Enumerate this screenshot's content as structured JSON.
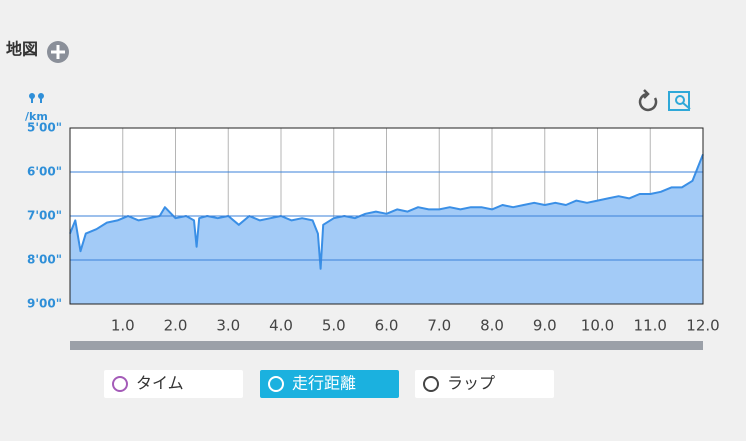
{
  "header": {
    "title": "地図"
  },
  "chart_data": {
    "type": "area",
    "y_label": "/km",
    "x": [
      0,
      0.1,
      0.2,
      0.3,
      0.5,
      0.7,
      0.9,
      1.1,
      1.3,
      1.5,
      1.7,
      1.8,
      2.0,
      2.2,
      2.35,
      2.4,
      2.45,
      2.6,
      2.8,
      3.0,
      3.2,
      3.4,
      3.6,
      3.8,
      4.0,
      4.2,
      4.4,
      4.6,
      4.7,
      4.75,
      4.8,
      5.0,
      5.2,
      5.4,
      5.6,
      5.8,
      6.0,
      6.2,
      6.4,
      6.6,
      6.8,
      7.0,
      7.2,
      7.4,
      7.6,
      7.8,
      8.0,
      8.2,
      8.4,
      8.6,
      8.8,
      9.0,
      9.2,
      9.4,
      9.6,
      9.8,
      10.0,
      10.2,
      10.4,
      10.6,
      10.8,
      11.0,
      11.2,
      11.4,
      11.6,
      11.8,
      11.9,
      12.0
    ],
    "values": [
      7.4,
      7.1,
      7.8,
      7.4,
      7.3,
      7.15,
      7.1,
      7.0,
      7.1,
      7.05,
      7.0,
      6.8,
      7.05,
      7.0,
      7.1,
      7.7,
      7.05,
      7.0,
      7.05,
      7.0,
      7.2,
      7.0,
      7.1,
      7.05,
      7.0,
      7.1,
      7.05,
      7.1,
      7.4,
      8.2,
      7.2,
      7.05,
      7.0,
      7.05,
      6.95,
      6.9,
      6.95,
      6.85,
      6.9,
      6.8,
      6.85,
      6.85,
      6.8,
      6.85,
      6.8,
      6.8,
      6.85,
      6.75,
      6.8,
      6.75,
      6.7,
      6.75,
      6.7,
      6.75,
      6.65,
      6.7,
      6.65,
      6.6,
      6.55,
      6.6,
      6.5,
      6.5,
      6.45,
      6.35,
      6.35,
      6.2,
      5.9,
      5.6
    ],
    "color": "#3a8fe6",
    "fill": "#a3cbf7",
    "xlim": [
      0,
      12
    ],
    "xticks": [
      {
        "value": 1,
        "label": "1.0"
      },
      {
        "value": 2,
        "label": "2.0"
      },
      {
        "value": 3,
        "label": "3.0"
      },
      {
        "value": 4,
        "label": "4.0"
      },
      {
        "value": 5,
        "label": "5.0"
      },
      {
        "value": 6,
        "label": "6.0"
      },
      {
        "value": 7,
        "label": "7.0"
      },
      {
        "value": 8,
        "label": "8.0"
      },
      {
        "value": 9,
        "label": "9.0"
      },
      {
        "value": 10,
        "label": "10.0"
      },
      {
        "value": 11,
        "label": "11.0"
      },
      {
        "value": 12,
        "label": "12.0"
      }
    ],
    "ylim": [
      9,
      5
    ],
    "yticks": [
      {
        "value": 5,
        "label": "5'00\""
      },
      {
        "value": 6,
        "label": "6'00\""
      },
      {
        "value": 7,
        "label": "7'00\""
      },
      {
        "value": 8,
        "label": "8'00\""
      },
      {
        "value": 9,
        "label": "9'00\""
      }
    ],
    "grid": true
  },
  "buttons": [
    "タイム",
    "走行距離",
    "ラップ"
  ]
}
